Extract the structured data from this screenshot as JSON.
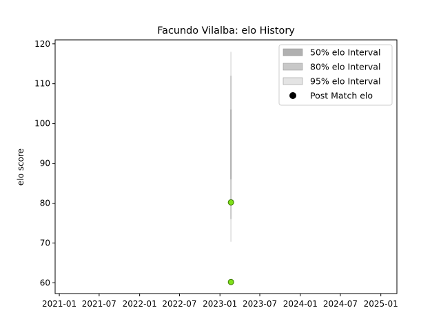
{
  "chart_data": {
    "type": "scatter",
    "title": "Facundo Vilalba: elo History",
    "xlabel": "",
    "ylabel": "elo score",
    "x_type": "date",
    "x_range": [
      "2020-12-13",
      "2025-03-15"
    ],
    "ylim": [
      57.3,
      121.0
    ],
    "x_ticks": [
      "2021-01",
      "2021-07",
      "2022-01",
      "2022-07",
      "2023-01",
      "2023-07",
      "2024-01",
      "2024-07",
      "2025-01"
    ],
    "y_ticks": [
      60,
      70,
      80,
      90,
      100,
      110,
      120
    ],
    "grid": false,
    "legend_position": "top-right",
    "legend": [
      {
        "label": "50% elo Interval",
        "kind": "band",
        "color": "#b0b0b0"
      },
      {
        "label": "80% elo Interval",
        "kind": "band",
        "color": "#c8c8c8"
      },
      {
        "label": "95% elo Interval",
        "kind": "band",
        "color": "#e4e4e4"
      },
      {
        "label": "Post Match elo",
        "kind": "marker",
        "color": "#000000"
      }
    ],
    "intervals": [
      {
        "name": "95% elo Interval",
        "color": "#e4e4e4",
        "x": "2023-02-20",
        "low": 70.3,
        "high": 118.0
      },
      {
        "name": "80% elo Interval",
        "color": "#c8c8c8",
        "x": "2023-02-20",
        "low": 76.0,
        "high": 112.0
      },
      {
        "name": "50% elo Interval",
        "color": "#b0b0b0",
        "x": "2023-02-20",
        "low": 86.0,
        "high": 103.5
      }
    ],
    "series": [
      {
        "name": "Post Match elo",
        "marker_color": "#7fe01a",
        "marker_edge": "#3c7a00",
        "points": [
          {
            "x": "2023-02-20",
            "y": 80.2
          },
          {
            "x": "2023-02-20",
            "y": 60.2
          }
        ]
      }
    ]
  }
}
